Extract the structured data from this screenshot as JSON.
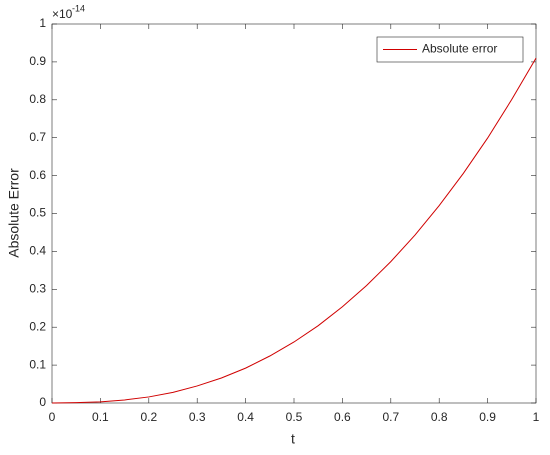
{
  "chart_data": {
    "type": "line",
    "xlabel": "t",
    "ylabel": "Absolute Error",
    "y_multiplier": "×10",
    "y_exponent": "-14",
    "x": [
      0,
      0.05,
      0.1,
      0.15,
      0.2,
      0.25,
      0.3,
      0.35,
      0.4,
      0.45,
      0.5,
      0.55,
      0.6,
      0.65,
      0.7,
      0.75,
      0.8,
      0.85,
      0.9,
      0.95,
      1
    ],
    "series": [
      {
        "name": "Absolute error",
        "color": "#d00000",
        "values": [
          0,
          0.001,
          0.003,
          0.008,
          0.016,
          0.028,
          0.045,
          0.066,
          0.092,
          0.124,
          0.161,
          0.204,
          0.254,
          0.31,
          0.373,
          0.443,
          0.521,
          0.606,
          0.699,
          0.801,
          0.91
        ]
      }
    ],
    "xlim": [
      0,
      1
    ],
    "ylim": [
      0,
      1
    ],
    "xticks": [
      0,
      0.1,
      0.2,
      0.3,
      0.4,
      0.5,
      0.6,
      0.7,
      0.8,
      0.9,
      1
    ],
    "yticks": [
      0,
      0.1,
      0.2,
      0.3,
      0.4,
      0.5,
      0.6,
      0.7,
      0.8,
      0.9,
      1
    ],
    "grid": false,
    "legend": "northeast"
  }
}
